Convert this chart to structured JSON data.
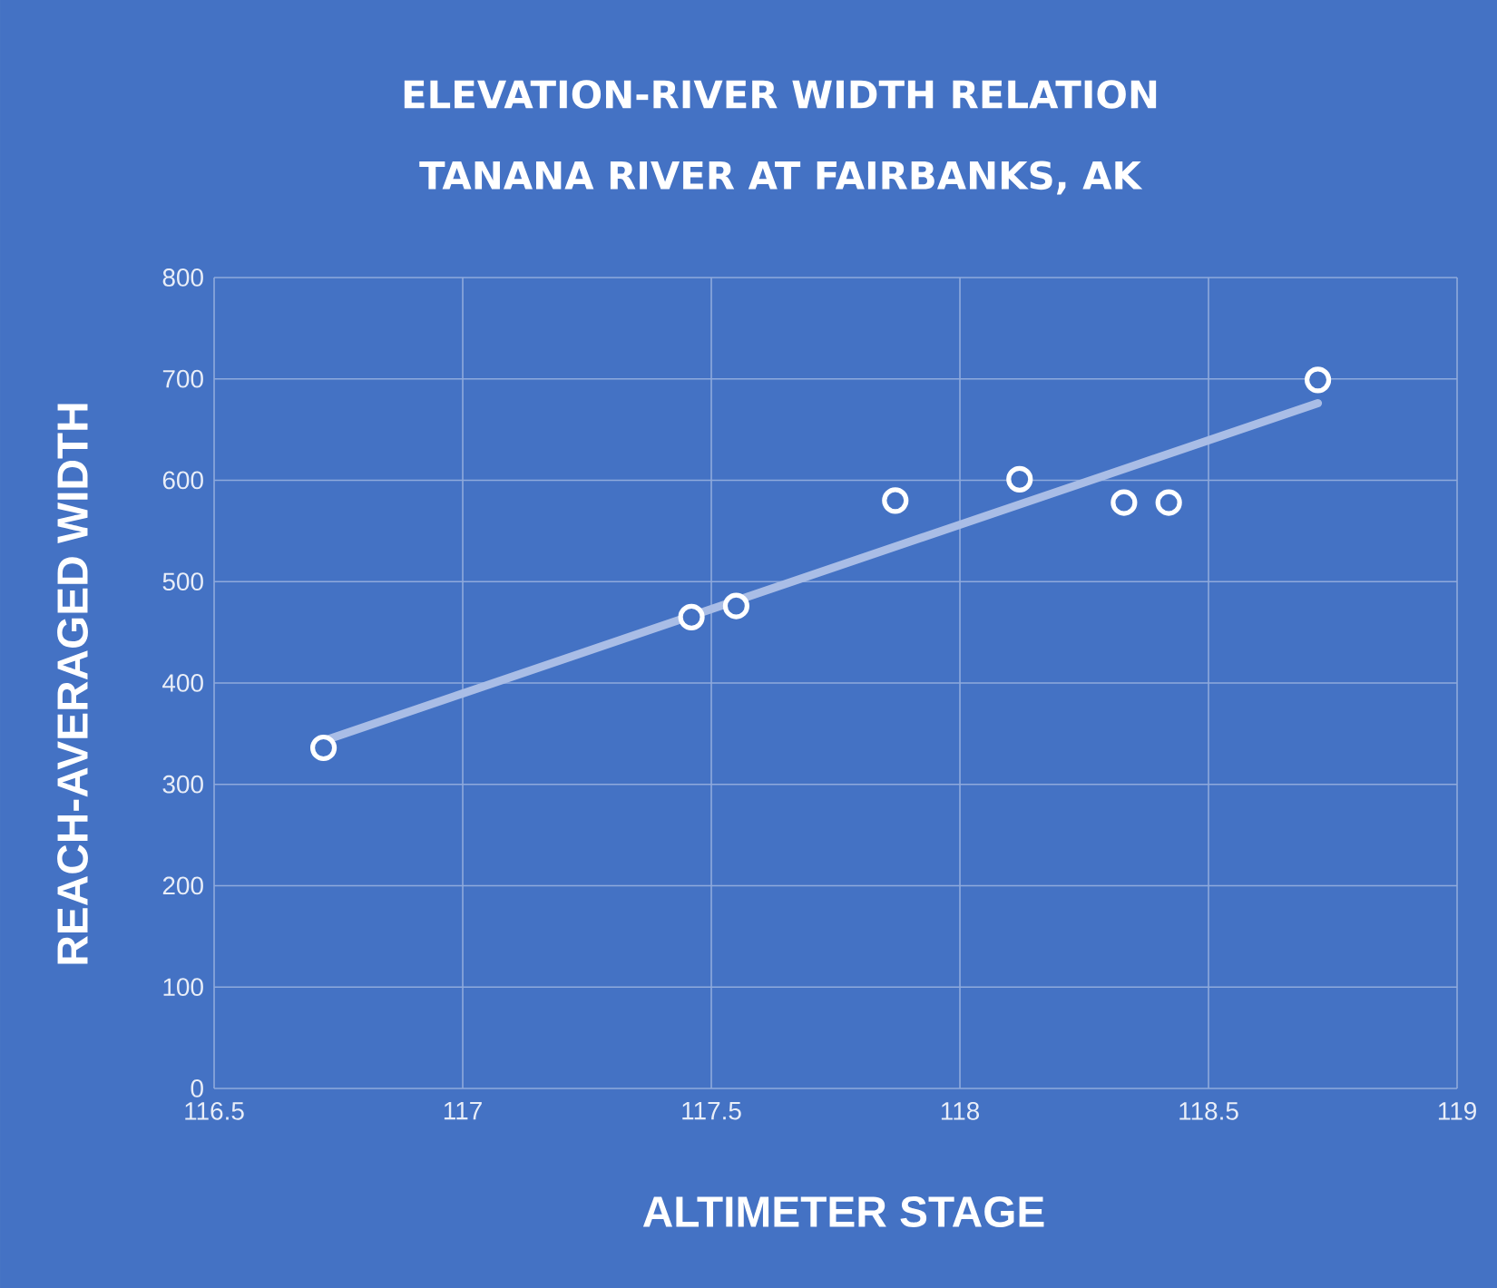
{
  "chart_data": {
    "type": "scatter",
    "title": "ELEVATION-RIVER  WIDTH RELATION",
    "subtitle": "TANANA RIVER AT FAIRBANKS, AK",
    "xlabel": "ALTIMETER STAGE",
    "ylabel": "REACH-AVERAGED WIDTH",
    "xlim": [
      116.5,
      119
    ],
    "xticks": [
      116.5,
      117,
      117.5,
      118,
      118.5,
      119
    ],
    "ylim": [
      0,
      800
    ],
    "yticks": [
      0,
      100,
      200,
      300,
      400,
      500,
      600,
      700,
      800
    ],
    "grid": true,
    "series": [
      {
        "type": "scatter",
        "marker": "circle",
        "color": "#ffffff",
        "x": [
          116.72,
          117.46,
          117.55,
          117.87,
          118.12,
          118.33,
          118.42,
          118.72
        ],
        "values": [
          336,
          465,
          476,
          580,
          601,
          578,
          578,
          699
        ]
      },
      {
        "type": "line",
        "marker": "none",
        "color": "#a9bde6",
        "x": [
          116.72,
          118.72
        ],
        "values": [
          343,
          676
        ]
      }
    ]
  }
}
